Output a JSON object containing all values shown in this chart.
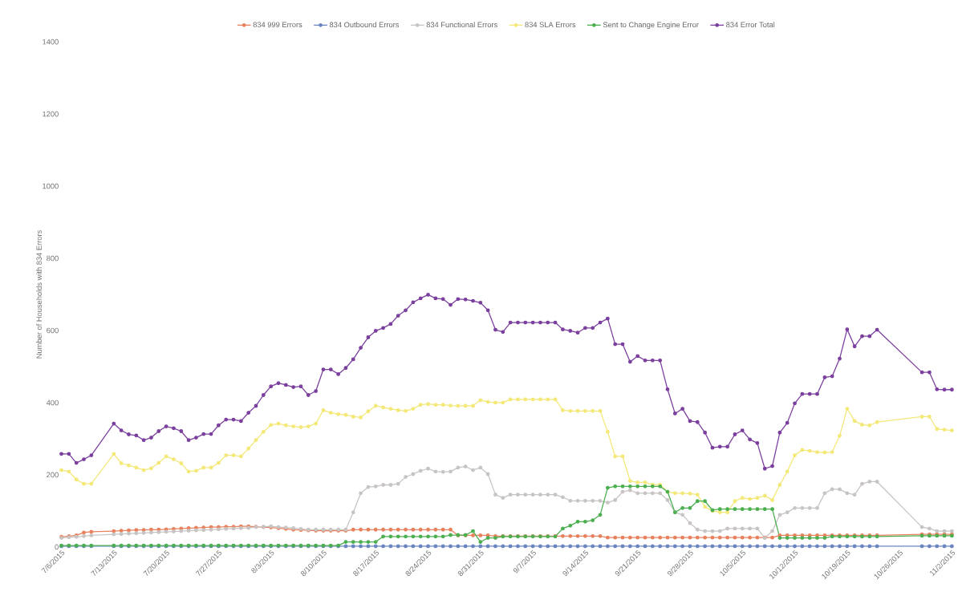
{
  "chart_data": {
    "type": "line",
    "ylabel": "Number of Households with 834 Errors",
    "legend": "top",
    "marker": "circle",
    "line_style": "solid",
    "ylim": [
      0,
      1400
    ],
    "yticks": [
      0,
      200,
      400,
      600,
      800,
      1000,
      1200,
      1400
    ],
    "xlim": [
      "2015-07-06",
      "2015-11-02"
    ],
    "xticks": [
      {
        "value": "2015-07-06",
        "label": "7/6/2015"
      },
      {
        "value": "2015-07-13",
        "label": "7/13/2015"
      },
      {
        "value": "2015-07-20",
        "label": "7/20/2015"
      },
      {
        "value": "2015-07-27",
        "label": "7/27/2015"
      },
      {
        "value": "2015-08-03",
        "label": "8/3/2015"
      },
      {
        "value": "2015-08-10",
        "label": "8/10/2015"
      },
      {
        "value": "2015-08-17",
        "label": "8/17/2015"
      },
      {
        "value": "2015-08-24",
        "label": "8/24/2015"
      },
      {
        "value": "2015-08-31",
        "label": "8/31/2015"
      },
      {
        "value": "2015-09-07",
        "label": "9/7/2015"
      },
      {
        "value": "2015-09-14",
        "label": "9/14/2015"
      },
      {
        "value": "2015-09-21",
        "label": "9/21/2015"
      },
      {
        "value": "2015-09-28",
        "label": "9/28/2015"
      },
      {
        "value": "2015-10-05",
        "label": "10/5/2015"
      },
      {
        "value": "2015-10-12",
        "label": "10/12/2015"
      },
      {
        "value": "2015-10-19",
        "label": "10/19/2015"
      },
      {
        "value": "2015-10-26",
        "label": "10/26/2015"
      },
      {
        "value": "2015-11-02",
        "label": "11/2/2015"
      }
    ],
    "x": [
      "2015-07-06",
      "2015-07-07",
      "2015-07-08",
      "2015-07-09",
      "2015-07-10",
      "2015-07-13",
      "2015-07-14",
      "2015-07-15",
      "2015-07-16",
      "2015-07-17",
      "2015-07-18",
      "2015-07-19",
      "2015-07-20",
      "2015-07-21",
      "2015-07-22",
      "2015-07-23",
      "2015-07-24",
      "2015-07-25",
      "2015-07-26",
      "2015-07-27",
      "2015-07-28",
      "2015-07-29",
      "2015-07-30",
      "2015-07-31",
      "2015-08-01",
      "2015-08-02",
      "2015-08-03",
      "2015-08-04",
      "2015-08-05",
      "2015-08-06",
      "2015-08-07",
      "2015-08-08",
      "2015-08-09",
      "2015-08-10",
      "2015-08-11",
      "2015-08-12",
      "2015-08-13",
      "2015-08-14",
      "2015-08-15",
      "2015-08-16",
      "2015-08-17",
      "2015-08-18",
      "2015-08-19",
      "2015-08-20",
      "2015-08-21",
      "2015-08-22",
      "2015-08-23",
      "2015-08-24",
      "2015-08-25",
      "2015-08-26",
      "2015-08-27",
      "2015-08-28",
      "2015-08-29",
      "2015-08-30",
      "2015-08-31",
      "2015-09-01",
      "2015-09-02",
      "2015-09-03",
      "2015-09-04",
      "2015-09-05",
      "2015-09-06",
      "2015-09-07",
      "2015-09-08",
      "2015-09-09",
      "2015-09-10",
      "2015-09-11",
      "2015-09-12",
      "2015-09-13",
      "2015-09-14",
      "2015-09-15",
      "2015-09-16",
      "2015-09-17",
      "2015-09-18",
      "2015-09-19",
      "2015-09-20",
      "2015-09-21",
      "2015-09-22",
      "2015-09-23",
      "2015-09-24",
      "2015-09-25",
      "2015-09-26",
      "2015-09-27",
      "2015-09-28",
      "2015-09-29",
      "2015-09-30",
      "2015-10-01",
      "2015-10-02",
      "2015-10-03",
      "2015-10-04",
      "2015-10-05",
      "2015-10-06",
      "2015-10-07",
      "2015-10-08",
      "2015-10-09",
      "2015-10-10",
      "2015-10-11",
      "2015-10-12",
      "2015-10-13",
      "2015-10-14",
      "2015-10-15",
      "2015-10-16",
      "2015-10-17",
      "2015-10-18",
      "2015-10-19",
      "2015-10-20",
      "2015-10-21",
      "2015-10-22",
      "2015-10-23",
      "2015-10-29",
      "2015-10-30",
      "2015-10-31",
      "2015-11-01",
      "2015-11-02"
    ],
    "series": [
      {
        "name": "834 999 Errors",
        "color": "#e8825e",
        "values": [
          28,
          30,
          32,
          40,
          42,
          44,
          45,
          46,
          47,
          47,
          48,
          48,
          49,
          50,
          51,
          52,
          53,
          54,
          55,
          55,
          56,
          56,
          57,
          57,
          56,
          55,
          54,
          52,
          50,
          48,
          47,
          46,
          45,
          45,
          45,
          45,
          45,
          48,
          48,
          48,
          48,
          48,
          48,
          48,
          48,
          48,
          48,
          48,
          48,
          48,
          48,
          32,
          32,
          32,
          32,
          32,
          30,
          30,
          30,
          30,
          30,
          30,
          30,
          30,
          30,
          30,
          30,
          30,
          30,
          30,
          30,
          26,
          26,
          26,
          26,
          26,
          26,
          26,
          26,
          26,
          26,
          26,
          26,
          26,
          26,
          26,
          26,
          26,
          26,
          26,
          26,
          26,
          26,
          26,
          32,
          32,
          32,
          32,
          32,
          32,
          32,
          32,
          32,
          32,
          32,
          32,
          32,
          32,
          35,
          35,
          35,
          35,
          35
        ]
      },
      {
        "name": "834 Outbound Errors",
        "color": "#6b85c0",
        "values": [
          2,
          2,
          2,
          2,
          2,
          2,
          2,
          2,
          2,
          2,
          2,
          2,
          2,
          2,
          2,
          2,
          2,
          2,
          2,
          2,
          2,
          2,
          2,
          2,
          2,
          2,
          2,
          2,
          2,
          2,
          2,
          2,
          2,
          2,
          2,
          2,
          2,
          2,
          2,
          2,
          2,
          2,
          2,
          2,
          2,
          2,
          2,
          2,
          2,
          2,
          2,
          2,
          2,
          2,
          2,
          2,
          2,
          2,
          2,
          2,
          2,
          2,
          2,
          2,
          2,
          2,
          2,
          2,
          2,
          2,
          2,
          2,
          2,
          2,
          2,
          2,
          2,
          2,
          2,
          2,
          2,
          2,
          2,
          2,
          2,
          2,
          2,
          2,
          2,
          2,
          2,
          2,
          2,
          2,
          2,
          2,
          2,
          2,
          2,
          2,
          2,
          2,
          2,
          2,
          2,
          2,
          2,
          2,
          2,
          2,
          2,
          2,
          2
        ]
      },
      {
        "name": "834 Functional Errors",
        "color": "#c8c4c4",
        "values": [
          25,
          27,
          28,
          30,
          32,
          35,
          36,
          37,
          38,
          39,
          40,
          41,
          42,
          43,
          44,
          45,
          46,
          47,
          48,
          49,
          50,
          51,
          52,
          53,
          55,
          56,
          57,
          55,
          54,
          52,
          50,
          48,
          48,
          48,
          48,
          48,
          48,
          96,
          149,
          166,
          168,
          172,
          172,
          175,
          194,
          202,
          211,
          217,
          209,
          208,
          209,
          220,
          223,
          213,
          220,
          202,
          145,
          136,
          145,
          145,
          145,
          145,
          145,
          145,
          145,
          138,
          128,
          128,
          128,
          128,
          128,
          123,
          130,
          153,
          157,
          149,
          149,
          149,
          149,
          130,
          96,
          89,
          66,
          48,
          44,
          44,
          44,
          51,
          51,
          51,
          51,
          51,
          25,
          44,
          89,
          96,
          108,
          108,
          108,
          108,
          149,
          160,
          160,
          149,
          145,
          175,
          181,
          181,
          55,
          51,
          44,
          44,
          44
        ]
      },
      {
        "name": "834 SLA Errors",
        "color": "#f3e878",
        "values": [
          213,
          209,
          187,
          175,
          175,
          258,
          232,
          226,
          220,
          213,
          218,
          233,
          251,
          243,
          232,
          209,
          211,
          220,
          220,
          233,
          254,
          254,
          251,
          273,
          296,
          319,
          338,
          342,
          337,
          334,
          332,
          334,
          342,
          379,
          372,
          368,
          366,
          361,
          359,
          376,
          391,
          387,
          383,
          379,
          377,
          383,
          394,
          396,
          394,
          394,
          392,
          391,
          391,
          391,
          407,
          402,
          400,
          400,
          409,
          409,
          409,
          409,
          409,
          409,
          409,
          379,
          377,
          377,
          377,
          377,
          377,
          319,
          251,
          251,
          183,
          179,
          179,
          173,
          172,
          153,
          149,
          149,
          148,
          145,
          111,
          100,
          96,
          96,
          127,
          136,
          133,
          136,
          142,
          130,
          172,
          209,
          254,
          269,
          266,
          263,
          262,
          263,
          308,
          383,
          349,
          339,
          337,
          346,
          361,
          361,
          327,
          325,
          323
        ]
      },
      {
        "name": "Sent to Change Engine Error",
        "color": "#4caf50",
        "values": [
          4,
          4,
          4,
          4,
          4,
          4,
          4,
          4,
          4,
          4,
          4,
          4,
          4,
          4,
          4,
          4,
          4,
          4,
          4,
          4,
          4,
          4,
          4,
          4,
          4,
          4,
          4,
          4,
          4,
          4,
          4,
          4,
          4,
          4,
          4,
          4,
          14,
          14,
          14,
          14,
          14,
          29,
          29,
          29,
          29,
          29,
          29,
          29,
          29,
          29,
          33,
          33,
          33,
          44,
          14,
          25,
          25,
          29,
          29,
          29,
          29,
          29,
          29,
          29,
          29,
          51,
          59,
          70,
          70,
          74,
          89,
          164,
          168,
          168,
          168,
          168,
          168,
          168,
          168,
          153,
          96,
          108,
          108,
          127,
          127,
          102,
          105,
          105,
          105,
          105,
          105,
          105,
          105,
          105,
          25,
          25,
          25,
          25,
          25,
          25,
          25,
          29,
          29,
          29,
          29,
          29,
          29,
          29,
          31,
          31,
          31,
          31,
          31
        ]
      },
      {
        "name": "834 Error Total",
        "color": "#7b3f9e",
        "values": [
          258,
          258,
          233,
          243,
          254,
          342,
          323,
          312,
          309,
          296,
          303,
          321,
          334,
          329,
          321,
          296,
          303,
          313,
          313,
          337,
          353,
          353,
          349,
          372,
          391,
          421,
          445,
          454,
          449,
          443,
          445,
          421,
          432,
          492,
          492,
          479,
          496,
          520,
          552,
          581,
          599,
          607,
          618,
          641,
          656,
          678,
          689,
          699,
          689,
          687,
          671,
          687,
          686,
          682,
          677,
          656,
          602,
          596,
          622,
          622,
          622,
          622,
          622,
          622,
          622,
          603,
          599,
          594,
          607,
          607,
          622,
          633,
          562,
          562,
          513,
          529,
          517,
          517,
          517,
          437,
          370,
          383,
          349,
          346,
          317,
          275,
          278,
          278,
          312,
          323,
          298,
          288,
          217,
          224,
          317,
          344,
          398,
          424,
          424,
          424,
          470,
          473,
          522,
          603,
          556,
          584,
          584,
          602,
          484,
          484,
          437,
          436,
          436
        ]
      }
    ]
  }
}
